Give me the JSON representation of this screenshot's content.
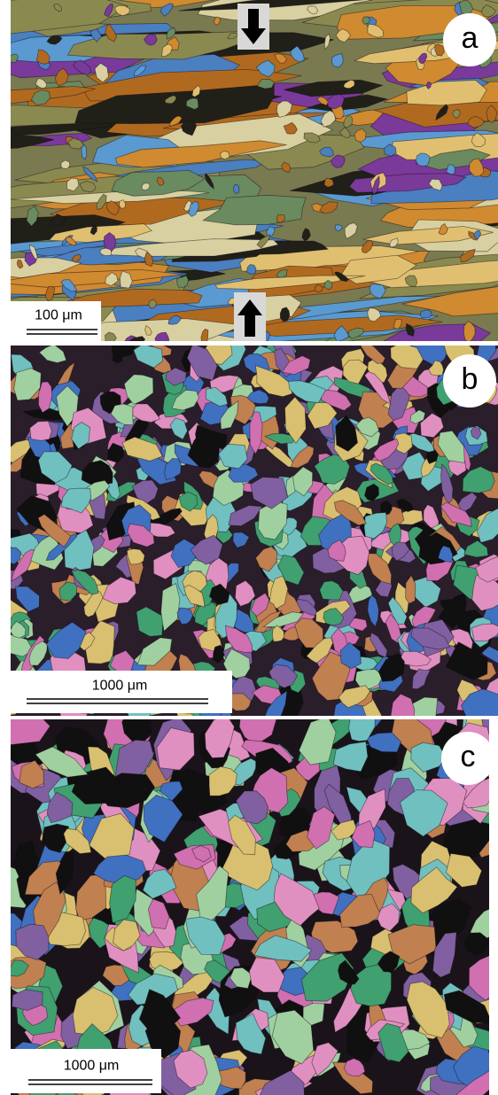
{
  "panels": [
    {
      "label": "a",
      "scale": "100 μm"
    },
    {
      "label": "b",
      "scale": "1000 μm"
    },
    {
      "label": "c",
      "scale": "1000 μm"
    }
  ]
}
